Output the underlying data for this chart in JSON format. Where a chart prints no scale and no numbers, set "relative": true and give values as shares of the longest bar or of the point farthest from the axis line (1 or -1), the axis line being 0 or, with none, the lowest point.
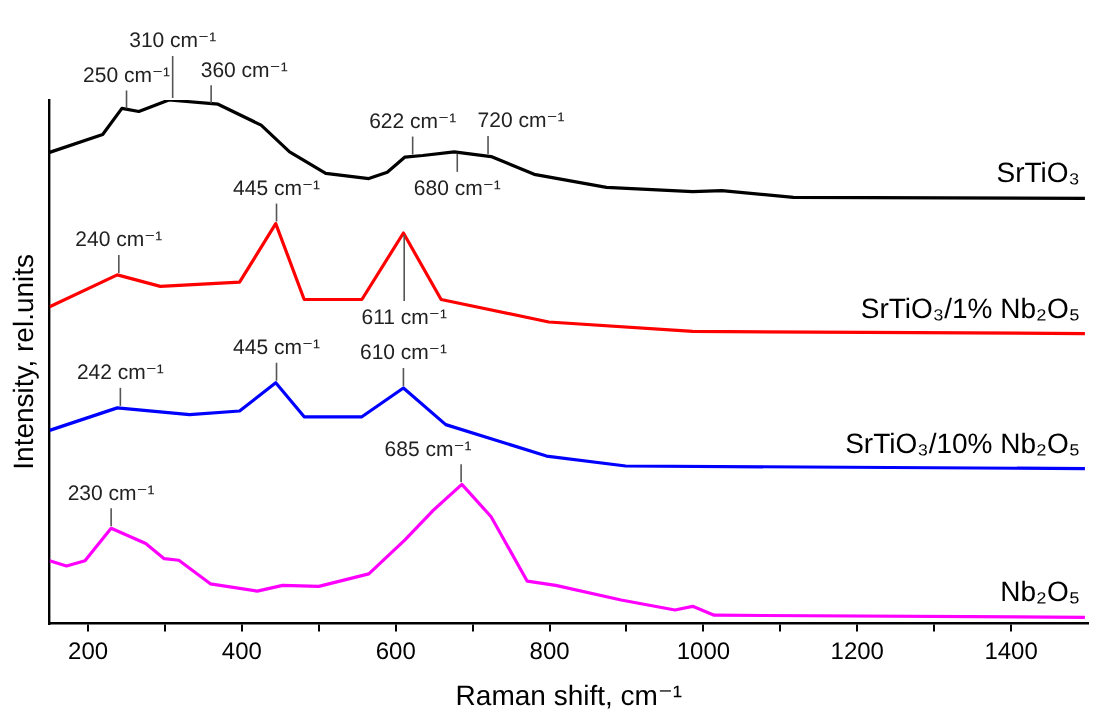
{
  "chart_data": {
    "type": "line",
    "relative": true,
    "xlabel": "Raman shift, cm⁻¹",
    "ylabel": "Intensity, rel.units",
    "xlim": [
      150,
      1500
    ],
    "xticks": [
      200,
      {
        "value": 300,
        "label": null
      },
      400,
      {
        "value": 500,
        "label": null
      },
      600,
      {
        "value": 700,
        "label": null
      },
      800,
      {
        "value": 900,
        "label": null
      },
      1000,
      {
        "value": 1100,
        "label": null
      },
      1200,
      {
        "value": 1300,
        "label": null
      },
      1400
    ],
    "grid": false,
    "legend": false,
    "marker": "none",
    "line_style": "solid",
    "series": [
      {
        "name": "SrTiO₃",
        "color": "#000000",
        "x": [
          150,
          219,
          244,
          266,
          305,
          369,
          425,
          462,
          509,
          565,
          589,
          612,
          635,
          676,
          724,
          780,
          874,
          986,
          1024,
          1117,
          1496
        ],
        "values": [
          0.9,
          0.934,
          0.984,
          0.978,
          1.0,
          0.992,
          0.952,
          0.901,
          0.86,
          0.85,
          0.862,
          0.891,
          0.894,
          0.901,
          0.892,
          0.858,
          0.833,
          0.825,
          0.827,
          0.814,
          0.812
        ]
      },
      {
        "name": "SrTiO₃/1% Nb₂O₅",
        "color": "#ff0000",
        "x": [
          150,
          238,
          294,
          397,
          444,
          481,
          556,
          610,
          659,
          799,
          986,
          1496
        ],
        "values": [
          0.605,
          0.666,
          0.644,
          0.652,
          0.764,
          0.619,
          0.619,
          0.746,
          0.619,
          0.576,
          0.558,
          0.554
        ]
      },
      {
        "name": "SrTiO₃/10% Nb₂O₅",
        "color": "#0000ff",
        "x": [
          150,
          238,
          332,
          397,
          444,
          481,
          556,
          610,
          665,
          796,
          899,
          1496
        ],
        "values": [
          0.369,
          0.412,
          0.399,
          0.406,
          0.46,
          0.395,
          0.395,
          0.45,
          0.38,
          0.32,
          0.301,
          0.296
        ]
      },
      {
        "name": "Nb₂O₅",
        "color": "#ff00ff",
        "x": [
          150,
          172,
          196,
          230,
          275,
          299,
          318,
          359,
          420,
          453,
          500,
          565,
          612,
          650,
          686,
          724,
          771,
          808,
          893,
          963,
          986,
          1014,
          1496
        ],
        "values": [
          0.12,
          0.11,
          0.12,
          0.182,
          0.153,
          0.124,
          0.121,
          0.076,
          0.062,
          0.073,
          0.071,
          0.095,
          0.16,
          0.218,
          0.266,
          0.204,
          0.081,
          0.073,
          0.045,
          0.026,
          0.033,
          0.016,
          0.012
        ]
      }
    ],
    "annotations": [
      {
        "text": "250 cm⁻¹",
        "x": 250,
        "y": 0.98
      },
      {
        "text": "310 cm⁻¹",
        "x": 310,
        "y": 1.0
      },
      {
        "text": "360 cm⁻¹",
        "x": 360,
        "y": 0.99
      },
      {
        "text": "622 cm⁻¹",
        "x": 622,
        "y": 0.892
      },
      {
        "text": "680 cm⁻¹",
        "x": 680,
        "y": 0.901
      },
      {
        "text": "720 cm⁻¹",
        "x": 720,
        "y": 0.893
      },
      {
        "text": "240 cm⁻¹",
        "x": 240,
        "y": 0.666
      },
      {
        "text": "445 cm⁻¹",
        "x": 445,
        "y": 0.764
      },
      {
        "text": "611 cm⁻¹",
        "x": 611,
        "y": 0.746
      },
      {
        "text": "242 cm⁻¹",
        "x": 242,
        "y": 0.412
      },
      {
        "text": "445 cm⁻¹",
        "x": 445,
        "y": 0.46
      },
      {
        "text": "610 cm⁻¹",
        "x": 610,
        "y": 0.45
      },
      {
        "text": "230 cm⁻¹",
        "x": 230,
        "y": 0.182
      },
      {
        "text": "685 cm⁻¹",
        "x": 685,
        "y": 0.266
      }
    ]
  }
}
